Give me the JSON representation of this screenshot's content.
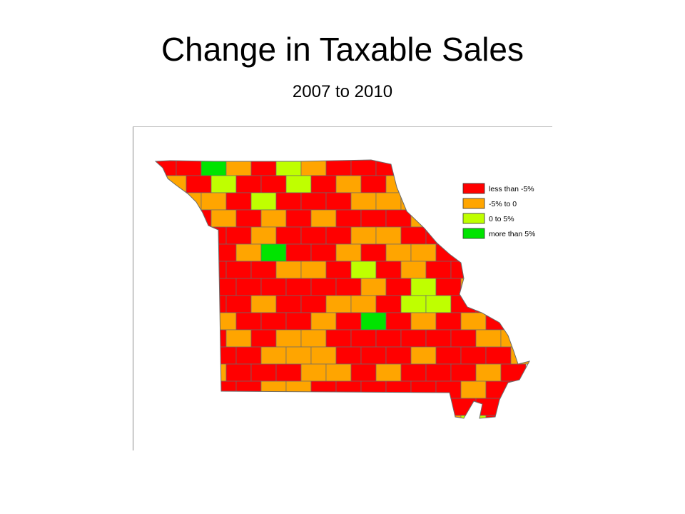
{
  "slide": {
    "title": "Change in Taxable Sales",
    "subtitle": "2007 to 2010"
  },
  "colors": {
    "less_than_minus_5": "#ff0000",
    "minus_5_to_0": "#ffa500",
    "zero_to_5": "#bfff00",
    "more_than_5": "#00e400",
    "county_border": "#6b6b6b",
    "frame": "#8c8c8c"
  },
  "legend": {
    "items": [
      {
        "label": "less than -5%",
        "class": "less_than_minus_5"
      },
      {
        "label": "-5% to 0",
        "class": "minus_5_to_0"
      },
      {
        "label": "0 to 5%",
        "class": "zero_to_5"
      },
      {
        "label": "more than 5%",
        "class": "more_than_5"
      }
    ]
  },
  "map": {
    "region": "Missouri counties",
    "class_order": [
      "less_than_minus_5",
      "minus_5_to_0",
      "zero_to_5",
      "more_than_5"
    ],
    "county_classes": [
      "2",
      "0",
      "0",
      "3",
      "1",
      "0",
      "2",
      "1",
      "0",
      "0",
      "0",
      "1",
      "0",
      "3",
      "0",
      "1",
      "0",
      "1",
      "0",
      "2",
      "0",
      "0",
      "2",
      "0",
      "1",
      "0",
      "1",
      "1",
      "0",
      "0",
      "0",
      "0",
      "0",
      "0",
      "1",
      "1",
      "0",
      "2",
      "0",
      "0",
      "0",
      "1",
      "1",
      "1",
      "0",
      "0",
      "0",
      "1",
      "0",
      "0",
      "0",
      "1",
      "0",
      "1",
      "0",
      "1",
      "0",
      "0",
      "0",
      "1",
      "1",
      "0",
      "1",
      "0",
      "0",
      "0",
      "1",
      "0",
      "0",
      "1",
      "0",
      "0",
      "0",
      "1",
      "1",
      "0",
      "0",
      "0",
      "0",
      "0",
      "0",
      "1",
      "0",
      "0",
      "1",
      "3",
      "0",
      "0",
      "1",
      "0",
      "1",
      "1",
      "0",
      "0",
      "0",
      "0",
      "1",
      "0",
      "0",
      "0",
      "0",
      "0",
      "1",
      "1",
      "0",
      "2",
      "0",
      "1",
      "0",
      "0",
      "0",
      "1",
      "1",
      "2",
      "0",
      "0",
      "0",
      "0",
      "0",
      "0",
      "0",
      "1",
      "0",
      "2",
      "0",
      "1",
      "0",
      "0",
      "1",
      "0",
      "1",
      "0",
      "0",
      "1",
      "0",
      "0",
      "1",
      "1",
      "0",
      "2"
    ]
  }
}
